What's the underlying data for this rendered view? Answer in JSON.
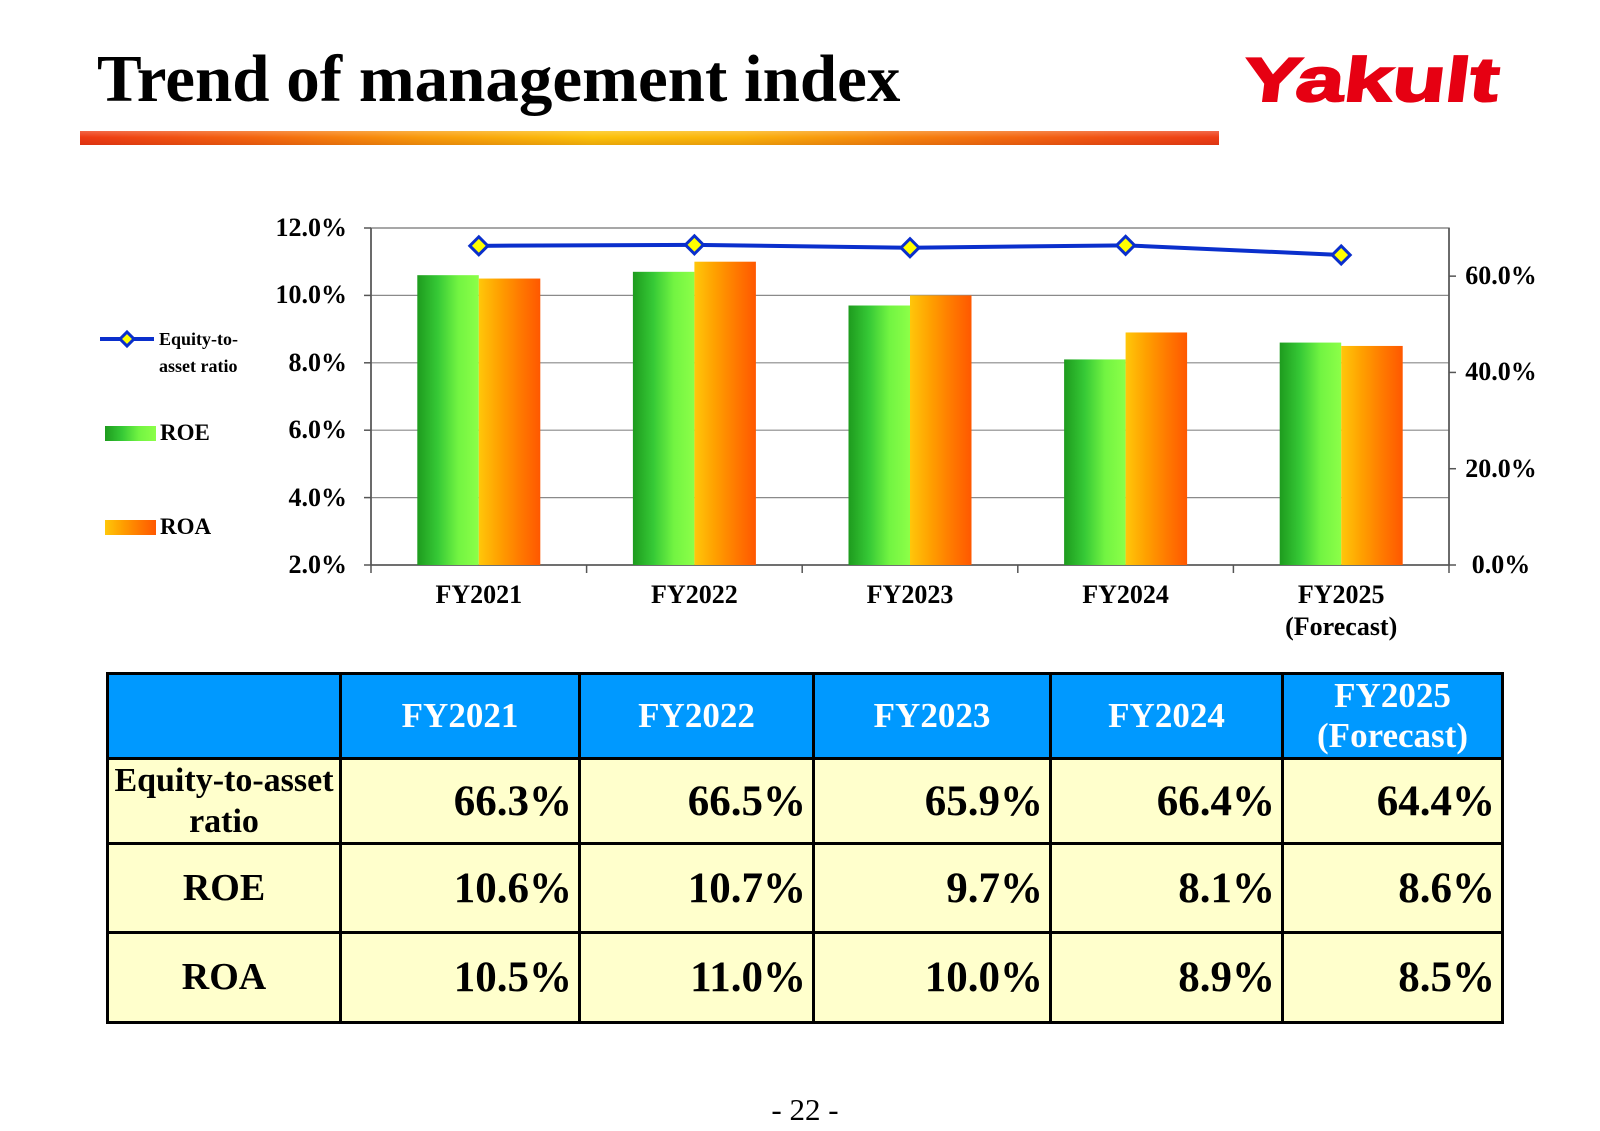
{
  "header": {
    "title": "Trend of management index",
    "logo_text": "Yakult",
    "logo_color": "#e60012"
  },
  "chart_data": {
    "type": "bar",
    "categories": [
      "FY2021",
      "FY2022",
      "FY2023",
      "FY2024",
      "FY2025 (Forecast)"
    ],
    "series": [
      {
        "name": "Equity-to-asset ratio",
        "type": "line",
        "axis": "right",
        "values": [
          66.3,
          66.5,
          65.9,
          66.4,
          64.4
        ],
        "color": "#0a2fcc",
        "marker": "diamond",
        "marker_fill": "#ffff00"
      },
      {
        "name": "ROE",
        "type": "bar",
        "axis": "left",
        "values": [
          10.6,
          10.7,
          9.7,
          8.1,
          8.6
        ],
        "colors": [
          "#1e9b1e",
          "#36c936",
          "#72f442",
          "#8cff48"
        ]
      },
      {
        "name": "ROA",
        "type": "bar",
        "axis": "left",
        "values": [
          10.5,
          11.0,
          10.0,
          8.9,
          8.5
        ],
        "colors": [
          "#ffc70a",
          "#ffa000",
          "#ff7a00",
          "#ff5800"
        ]
      }
    ],
    "y_left": {
      "range": [
        2,
        12
      ],
      "ticks": [
        {
          "value": 2,
          "label": "2.0%"
        },
        {
          "value": 4,
          "label": "4.0%"
        },
        {
          "value": 6,
          "label": "6.0%"
        },
        {
          "value": 8,
          "label": "8.0%"
        },
        {
          "value": 10,
          "label": "10.0%"
        },
        {
          "value": 12,
          "label": "12.0%"
        }
      ]
    },
    "y_right": {
      "range": [
        0,
        70
      ],
      "ticks": [
        {
          "value": 0,
          "label": "0.0%"
        },
        {
          "value": 20,
          "label": "20.0%"
        },
        {
          "value": 40,
          "label": "40.0%"
        },
        {
          "value": 60,
          "label": "60.0%"
        }
      ]
    },
    "grid": true,
    "legend": {
      "position": "left"
    }
  },
  "table": {
    "header_bg": "#0099ff",
    "body_bg": "#ffffcc",
    "columns": [
      "FY2021",
      "FY2022",
      "FY2023",
      "FY2024",
      "FY2025 (Forecast)"
    ],
    "rows": [
      {
        "label": "Equity-to-asset ratio",
        "values": [
          "66.3%",
          "66.5%",
          "65.9%",
          "66.4%",
          "64.4%"
        ]
      },
      {
        "label": "ROE",
        "values": [
          "10.6%",
          "10.7%",
          "9.7%",
          "8.1%",
          "8.6%"
        ]
      },
      {
        "label": "ROA",
        "values": [
          "10.5%",
          "11.0%",
          "10.0%",
          "8.9%",
          "8.5%"
        ]
      }
    ]
  },
  "footer": {
    "page_number": "- 22 -"
  }
}
